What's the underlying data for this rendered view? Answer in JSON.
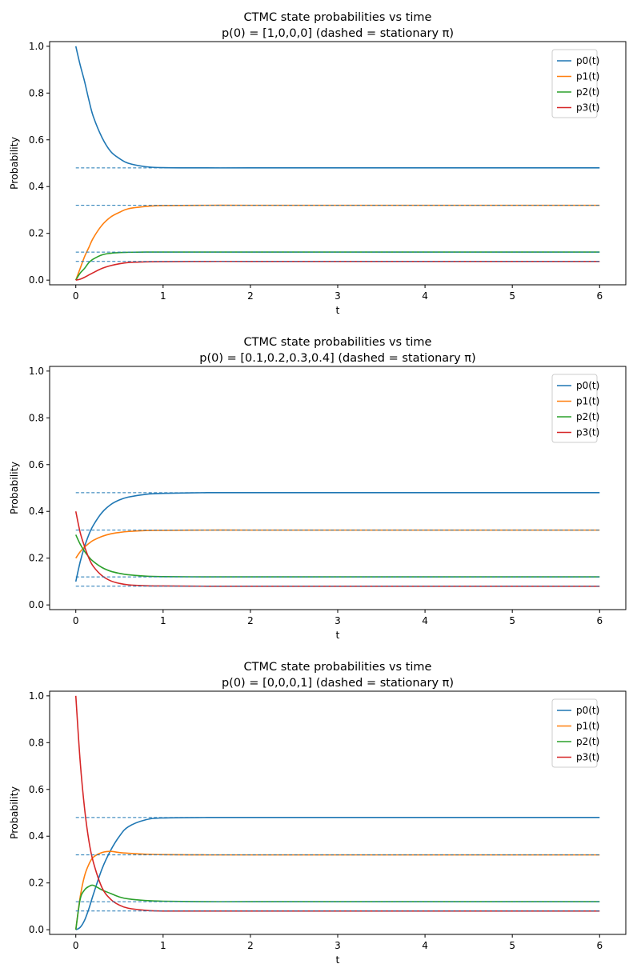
{
  "chart_data": [
    {
      "type": "line",
      "title": "CTMC state probabilities vs time",
      "subtitle": "p(0) = [1,0,0,0]  (dashed = stationary π)",
      "xlabel": "t",
      "ylabel": "Probability",
      "xlim": [
        -0.3,
        6.3
      ],
      "ylim": [
        -0.02,
        1.02
      ],
      "xticks": [
        0,
        1,
        2,
        3,
        4,
        5,
        6
      ],
      "yticks": [
        0.0,
        0.2,
        0.4,
        0.6,
        0.8,
        1.0
      ],
      "legend": "top-right",
      "grid": false,
      "x": [
        0,
        0.05,
        0.1,
        0.15,
        0.2,
        0.3,
        0.4,
        0.5,
        0.6,
        0.8,
        1,
        1.5,
        2,
        3,
        4,
        5,
        6
      ],
      "series": [
        {
          "name": "p0(t)",
          "color": "#1f77b4",
          "values": [
            1,
            0.92,
            0.85,
            0.77,
            0.7,
            0.61,
            0.55,
            0.52,
            0.5,
            0.485,
            0.481,
            0.48,
            0.48,
            0.48,
            0.48,
            0.48,
            0.48
          ]
        },
        {
          "name": "p1(t)",
          "color": "#ff7f0e",
          "values": [
            0,
            0.05,
            0.1,
            0.14,
            0.18,
            0.235,
            0.27,
            0.29,
            0.305,
            0.315,
            0.319,
            0.32,
            0.32,
            0.32,
            0.32,
            0.32,
            0.32
          ]
        },
        {
          "name": "p2(t)",
          "color": "#2ca02c",
          "values": [
            0,
            0.03,
            0.05,
            0.075,
            0.09,
            0.108,
            0.115,
            0.118,
            0.119,
            0.12,
            0.12,
            0.12,
            0.12,
            0.12,
            0.12,
            0.12,
            0.12
          ]
        },
        {
          "name": "p3(t)",
          "color": "#d62728",
          "values": [
            0,
            0.004,
            0.012,
            0.022,
            0.032,
            0.05,
            0.062,
            0.07,
            0.075,
            0.078,
            0.079,
            0.08,
            0.08,
            0.08,
            0.08,
            0.08,
            0.08
          ]
        }
      ],
      "stationary": [
        0.48,
        0.32,
        0.12,
        0.08
      ],
      "stationary_color": "#1f77b4"
    },
    {
      "type": "line",
      "title": "CTMC state probabilities vs time",
      "subtitle": "p(0) = [0.1,0.2,0.3,0.4]  (dashed = stationary π)",
      "xlabel": "t",
      "ylabel": "Probability",
      "xlim": [
        -0.3,
        6.3
      ],
      "ylim": [
        -0.02,
        1.02
      ],
      "xticks": [
        0,
        1,
        2,
        3,
        4,
        5,
        6
      ],
      "yticks": [
        0.0,
        0.2,
        0.4,
        0.6,
        0.8,
        1.0
      ],
      "legend": "top-right",
      "grid": false,
      "x": [
        0,
        0.05,
        0.1,
        0.15,
        0.2,
        0.3,
        0.4,
        0.5,
        0.6,
        0.8,
        1,
        1.5,
        2,
        3,
        4,
        5,
        6
      ],
      "series": [
        {
          "name": "p0(t)",
          "color": "#1f77b4",
          "values": [
            0.1,
            0.184,
            0.249,
            0.301,
            0.34,
            0.395,
            0.429,
            0.449,
            0.461,
            0.473,
            0.477,
            0.48,
            0.48,
            0.48,
            0.48,
            0.48,
            0.48
          ]
        },
        {
          "name": "p1(t)",
          "color": "#ff7f0e",
          "values": [
            0.2,
            0.227,
            0.247,
            0.263,
            0.276,
            0.293,
            0.304,
            0.31,
            0.314,
            0.318,
            0.319,
            0.32,
            0.32,
            0.32,
            0.32,
            0.32,
            0.32
          ]
        },
        {
          "name": "p2(t)",
          "color": "#2ca02c",
          "values": [
            0.3,
            0.26,
            0.229,
            0.205,
            0.186,
            0.16,
            0.144,
            0.135,
            0.129,
            0.123,
            0.121,
            0.12,
            0.12,
            0.12,
            0.12,
            0.12,
            0.12
          ]
        },
        {
          "name": "p3(t)",
          "color": "#d62728",
          "values": [
            0.4,
            0.31,
            0.25,
            0.2,
            0.165,
            0.125,
            0.103,
            0.092,
            0.086,
            0.082,
            0.081,
            0.08,
            0.08,
            0.08,
            0.08,
            0.08,
            0.08
          ]
        }
      ],
      "stationary": [
        0.48,
        0.32,
        0.12,
        0.08
      ],
      "stationary_color": "#1f77b4"
    },
    {
      "type": "line",
      "title": "CTMC state probabilities vs time",
      "subtitle": "p(0) = [0,0,0,1]  (dashed = stationary π)",
      "xlabel": "t",
      "ylabel": "Probability",
      "xlim": [
        -0.3,
        6.3
      ],
      "ylim": [
        -0.02,
        1.02
      ],
      "xticks": [
        0,
        1,
        2,
        3,
        4,
        5,
        6
      ],
      "yticks": [
        0.0,
        0.2,
        0.4,
        0.6,
        0.8,
        1.0
      ],
      "legend": "top-right",
      "grid": false,
      "x": [
        0,
        0.05,
        0.1,
        0.15,
        0.2,
        0.3,
        0.4,
        0.5,
        0.6,
        0.8,
        1,
        1.5,
        2,
        3,
        4,
        5,
        6
      ],
      "series": [
        {
          "name": "p0(t)",
          "color": "#1f77b4",
          "values": [
            0,
            0.01,
            0.04,
            0.09,
            0.15,
            0.26,
            0.34,
            0.4,
            0.44,
            0.47,
            0.478,
            0.48,
            0.48,
            0.48,
            0.48,
            0.48,
            0.48
          ]
        },
        {
          "name": "p1(t)",
          "color": "#ff7f0e",
          "values": [
            0,
            0.14,
            0.23,
            0.28,
            0.31,
            0.33,
            0.335,
            0.33,
            0.327,
            0.323,
            0.321,
            0.32,
            0.32,
            0.32,
            0.32,
            0.32,
            0.32
          ]
        },
        {
          "name": "p2(t)",
          "color": "#2ca02c",
          "values": [
            0,
            0.13,
            0.17,
            0.185,
            0.19,
            0.17,
            0.155,
            0.14,
            0.132,
            0.125,
            0.122,
            0.12,
            0.12,
            0.12,
            0.12,
            0.12,
            0.12
          ]
        },
        {
          "name": "p3(t)",
          "color": "#d62728",
          "values": [
            1,
            0.72,
            0.52,
            0.38,
            0.29,
            0.18,
            0.13,
            0.105,
            0.092,
            0.083,
            0.08,
            0.08,
            0.08,
            0.08,
            0.08,
            0.08,
            0.08
          ]
        }
      ],
      "stationary": [
        0.48,
        0.32,
        0.12,
        0.08
      ],
      "stationary_color": "#1f77b4"
    }
  ]
}
